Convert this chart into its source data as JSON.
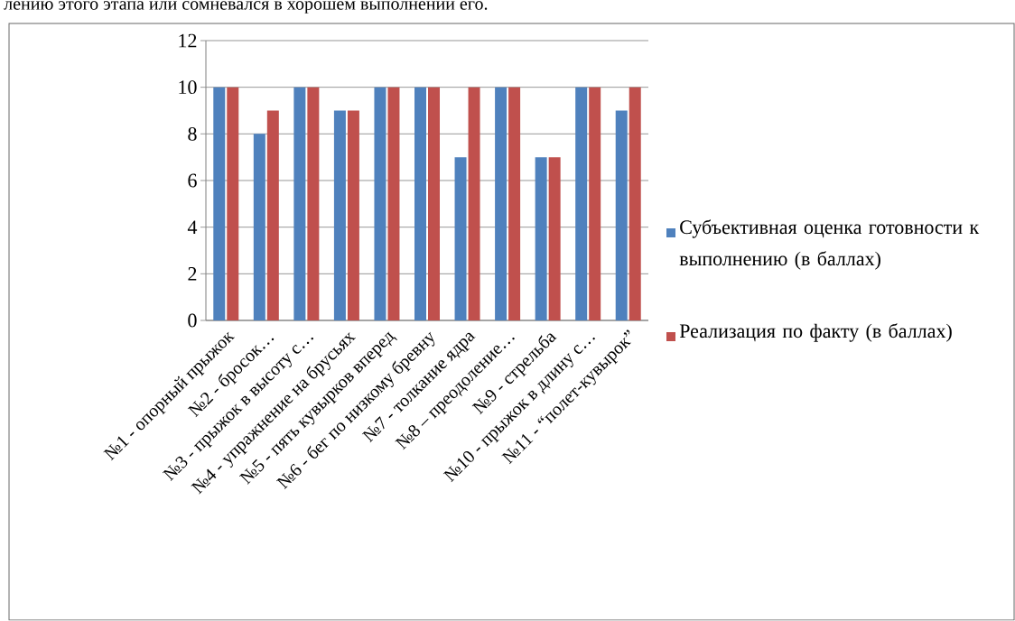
{
  "chart_data": {
    "type": "bar",
    "annotations": [
      "лению этого этапа или сомневался в хорошем выполнении его."
    ],
    "categories": [
      "№1 - опорный прыжок",
      "№2 - бросок…",
      "№3 - прыжок в высоту с…",
      "№4 - упражнение на брусьях",
      "№5 - пять кувырков вперед",
      "№6 - бег по низкому бревну",
      "№7 - толкание ядра",
      "№8 – преодоление…",
      "№9 - стрельба",
      "№10 - прыжок в длину с…",
      "№11 - “полет-кувырок”"
    ],
    "series": [
      {
        "name": "Субъективная оценка готовности к выполнению (в баллах)",
        "color": "#4f81bd",
        "values": [
          10,
          8,
          10,
          9,
          10,
          10,
          7,
          10,
          7,
          10,
          9
        ]
      },
      {
        "name": "Реализация по факту  (в баллах)",
        "color": "#c0504d",
        "values": [
          10,
          9,
          10,
          9,
          10,
          10,
          10,
          10,
          7,
          10,
          10
        ]
      }
    ],
    "ylim": [
      0,
      12
    ],
    "yticks": [
      0,
      2,
      4,
      6,
      8,
      10,
      12
    ],
    "grid": "y",
    "legend": "right"
  }
}
